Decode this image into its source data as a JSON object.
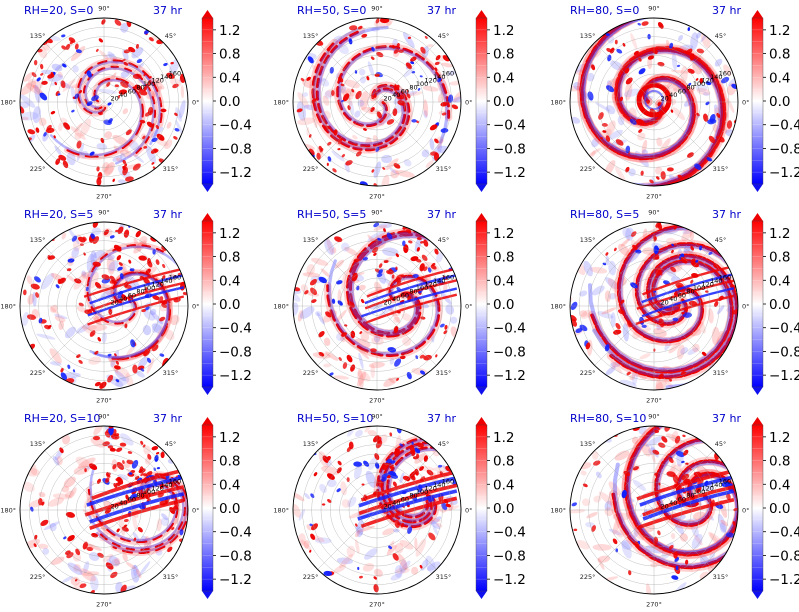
{
  "chart_data": {
    "type": "polar-contour-grid",
    "rows": 3,
    "cols": 3,
    "colorbar": {
      "ticks": [
        "1.2",
        "0.8",
        "0.4",
        "0.0",
        "−0.4",
        "−0.8",
        "−1.2"
      ],
      "range": [
        -1.4,
        1.4
      ],
      "colors": {
        "positive": "#ff0000",
        "zero": "#ffffff",
        "negative": "#0000ff"
      }
    },
    "angle_labels": [
      "0°",
      "45°",
      "90°",
      "135°",
      "180°",
      "225°",
      "270°",
      "315°"
    ],
    "radial_ticks": [
      "20",
      "40",
      "60",
      "80",
      "100",
      "120",
      "140",
      "160"
    ],
    "radial_max": 180,
    "panels": [
      {
        "title": "RH=20, S=0",
        "time": "37 hr",
        "rh": 20,
        "shear": 0
      },
      {
        "title": "RH=50, S=0",
        "time": "37 hr",
        "rh": 50,
        "shear": 0
      },
      {
        "title": "RH=80, S=0",
        "time": "37 hr",
        "rh": 80,
        "shear": 0
      },
      {
        "title": "RH=20, S=5",
        "time": "37 hr",
        "rh": 20,
        "shear": 5
      },
      {
        "title": "RH=50, S=5",
        "time": "37 hr",
        "rh": 50,
        "shear": 5
      },
      {
        "title": "RH=80, S=5",
        "time": "37 hr",
        "rh": 80,
        "shear": 5
      },
      {
        "title": "RH=20, S=10",
        "time": "37 hr",
        "rh": 20,
        "shear": 10
      },
      {
        "title": "RH=50, S=10",
        "time": "37 hr",
        "rh": 50,
        "shear": 10
      },
      {
        "title": "RH=80, S=10",
        "time": "37 hr",
        "rh": 80,
        "shear": 10
      }
    ]
  }
}
